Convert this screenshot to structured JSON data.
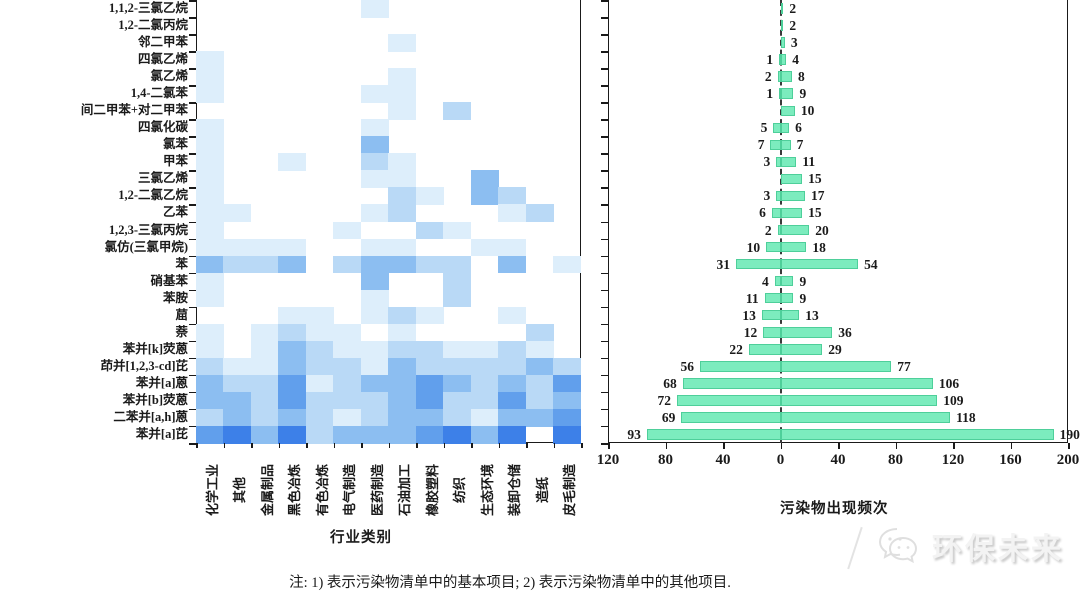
{
  "chart_data": {
    "type": "heatmap",
    "pollutants": [
      "1,1,2-三氯乙烷",
      "1,2-二氯丙烷",
      "邻二甲苯",
      "四氯乙烯",
      "氯乙烯",
      "1,4-二氯苯",
      "间二甲苯+对二甲苯",
      "四氯化碳",
      "氯苯",
      "甲苯",
      "三氯乙烯",
      "1,2-二氯乙烷",
      "乙苯",
      "1,2,3-三氯丙烷",
      "氯仿(三氯甲烷)",
      "苯",
      "硝基苯",
      "苯胺",
      "䓛",
      "萘",
      "苯并[k]荧蒽",
      "茚并[1,2,3-cd]芘",
      "苯并[a]蒽",
      "苯并[b]荧蒽",
      "二苯并[a,h]蒽",
      "苯并[a]芘"
    ],
    "industries": [
      "化学工业",
      "其他",
      "金属制品",
      "黑色冶炼",
      "有色冶炼",
      "电气制造",
      "医药制造",
      "石油加工",
      "橡胶塑料",
      "纺织",
      "生态环境",
      "装卸仓储",
      "造纸",
      "皮毛制造"
    ],
    "heatmap": {
      "xlabel": "行业类别",
      "color_scale": [
        "#ffffff",
        "#ddeefb",
        "#b9d9f6",
        "#8cbef1",
        "#619fec",
        "#3d80e8"
      ],
      "matrix": [
        [
          0,
          0,
          0,
          0,
          0,
          0,
          1,
          0,
          0,
          0,
          0,
          0,
          0,
          0
        ],
        [
          0,
          0,
          0,
          0,
          0,
          0,
          0,
          0,
          0,
          0,
          0,
          0,
          0,
          0
        ],
        [
          0,
          0,
          0,
          0,
          0,
          0,
          0,
          1,
          0,
          0,
          0,
          0,
          0,
          0
        ],
        [
          1,
          0,
          0,
          0,
          0,
          0,
          0,
          0,
          0,
          0,
          0,
          0,
          0,
          0
        ],
        [
          1,
          0,
          0,
          0,
          0,
          0,
          0,
          1,
          0,
          0,
          0,
          0,
          0,
          0
        ],
        [
          1,
          0,
          0,
          0,
          0,
          0,
          1,
          1,
          0,
          0,
          0,
          0,
          0,
          0
        ],
        [
          0,
          0,
          0,
          0,
          0,
          0,
          0,
          1,
          0,
          2,
          0,
          0,
          0,
          0
        ],
        [
          1,
          0,
          0,
          0,
          0,
          0,
          1,
          0,
          0,
          0,
          0,
          0,
          0,
          0
        ],
        [
          1,
          0,
          0,
          0,
          0,
          0,
          3,
          0,
          0,
          0,
          0,
          0,
          0,
          0
        ],
        [
          1,
          0,
          0,
          1,
          0,
          0,
          2,
          1,
          0,
          0,
          0,
          0,
          0,
          0
        ],
        [
          1,
          0,
          0,
          0,
          0,
          0,
          1,
          1,
          0,
          0,
          3,
          0,
          0,
          0
        ],
        [
          1,
          0,
          0,
          0,
          0,
          0,
          0,
          2,
          1,
          0,
          3,
          2,
          0,
          0
        ],
        [
          1,
          1,
          0,
          0,
          0,
          0,
          1,
          2,
          0,
          0,
          0,
          1,
          2,
          0
        ],
        [
          1,
          0,
          0,
          0,
          0,
          1,
          0,
          0,
          2,
          1,
          0,
          0,
          0,
          0
        ],
        [
          1,
          1,
          1,
          1,
          0,
          0,
          1,
          1,
          0,
          0,
          1,
          1,
          0,
          0
        ],
        [
          3,
          2,
          2,
          3,
          0,
          2,
          3,
          3,
          2,
          2,
          0,
          3,
          0,
          1
        ],
        [
          1,
          0,
          0,
          0,
          0,
          0,
          3,
          0,
          0,
          2,
          0,
          0,
          0,
          0
        ],
        [
          1,
          0,
          0,
          0,
          0,
          0,
          1,
          0,
          0,
          2,
          0,
          0,
          0,
          0
        ],
        [
          0,
          0,
          0,
          1,
          1,
          0,
          1,
          2,
          1,
          0,
          0,
          1,
          0,
          0
        ],
        [
          1,
          0,
          1,
          2,
          1,
          1,
          0,
          1,
          0,
          0,
          0,
          0,
          2,
          0
        ],
        [
          1,
          0,
          1,
          3,
          2,
          1,
          1,
          2,
          2,
          1,
          1,
          2,
          1,
          0
        ],
        [
          2,
          1,
          1,
          3,
          2,
          2,
          1,
          3,
          2,
          2,
          2,
          2,
          3,
          2
        ],
        [
          3,
          2,
          2,
          4,
          1,
          2,
          3,
          3,
          4,
          3,
          2,
          3,
          2,
          4
        ],
        [
          3,
          3,
          2,
          4,
          2,
          2,
          2,
          3,
          4,
          2,
          2,
          4,
          2,
          3
        ],
        [
          2,
          3,
          2,
          3,
          2,
          1,
          2,
          3,
          3,
          2,
          1,
          3,
          3,
          4
        ],
        [
          4,
          5,
          3,
          5,
          2,
          3,
          3,
          3,
          4,
          5,
          3,
          5,
          0,
          5
        ]
      ]
    },
    "bars": {
      "type": "bar",
      "xlabel": "污染物出现频次",
      "bar_color": "#7cecbe",
      "left_values": [
        0,
        0,
        0,
        1,
        2,
        1,
        0,
        5,
        7,
        3,
        0,
        3,
        6,
        2,
        10,
        31,
        4,
        11,
        13,
        12,
        22,
        56,
        68,
        72,
        69,
        93
      ],
      "right_values": [
        2,
        2,
        3,
        4,
        8,
        9,
        10,
        6,
        7,
        11,
        15,
        17,
        15,
        20,
        18,
        54,
        9,
        9,
        13,
        36,
        29,
        77,
        106,
        109,
        118,
        190
      ],
      "x_tick_positions": [
        -120,
        -80,
        -40,
        0,
        40,
        80,
        120,
        160,
        200
      ],
      "x_tick_labels": [
        "120",
        "80",
        "40",
        "0",
        "40",
        "80",
        "120",
        "160",
        "200"
      ],
      "x_range": [
        -120,
        200
      ]
    }
  },
  "note": "注: 1) 表示污染物清单中的基本项目; 2) 表示污染物清单中的其他项目.",
  "watermark": {
    "text": "环保未来"
  }
}
